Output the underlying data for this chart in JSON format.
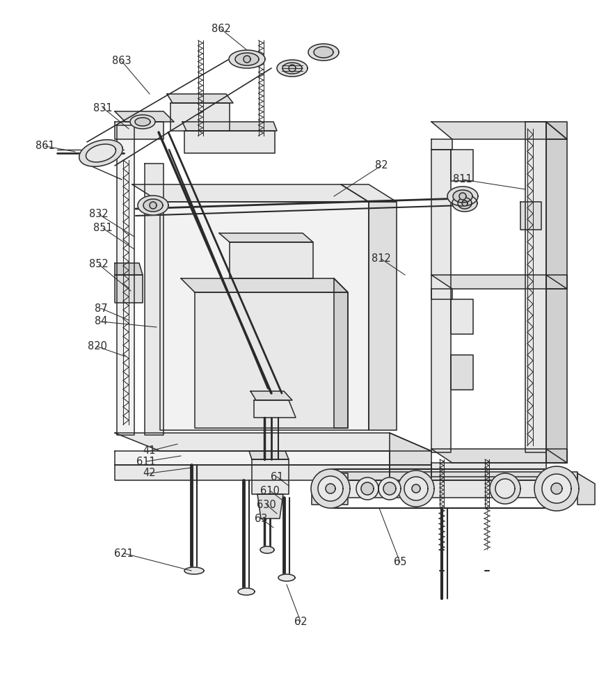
{
  "bg_color": "#ffffff",
  "lc": "#2a2a2a",
  "lw": 1.1,
  "gray1": "#f2f2f2",
  "gray2": "#e8e8e8",
  "gray3": "#dedede",
  "gray4": "#d0d0d0",
  "gray5": "#c8c8c8",
  "white": "#ffffff",
  "font_size": 10.5
}
